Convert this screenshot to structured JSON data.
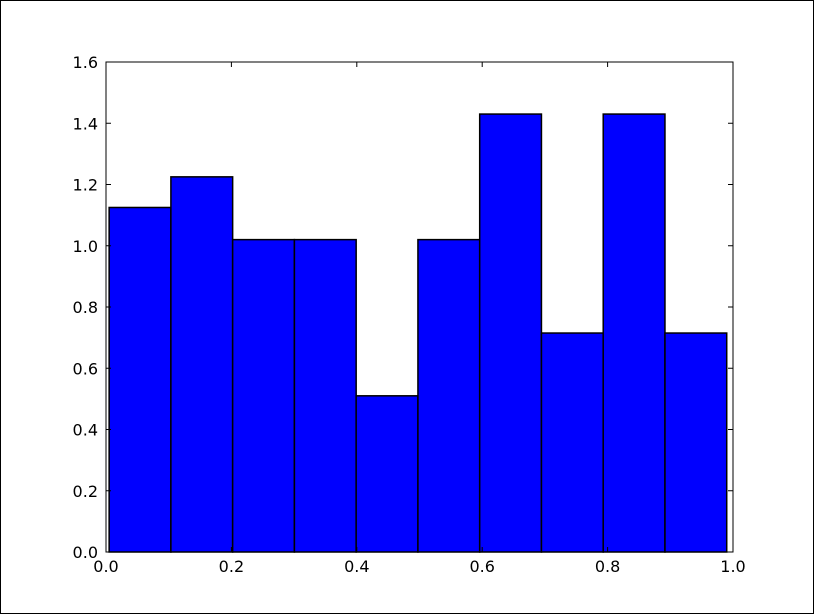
{
  "chart_data": {
    "type": "bar",
    "title": "",
    "xlabel": "",
    "ylabel": "",
    "xlim": [
      0.0,
      1.0
    ],
    "ylim": [
      0.0,
      1.6
    ],
    "bin_edges": [
      0.005,
      0.1035,
      0.202,
      0.3005,
      0.399,
      0.4975,
      0.596,
      0.6945,
      0.793,
      0.8915,
      0.99
    ],
    "values": [
      1.125,
      1.225,
      1.02,
      1.02,
      0.51,
      1.02,
      1.43,
      0.715,
      1.43,
      0.715
    ],
    "xticks": [
      "0.0",
      "0.2",
      "0.4",
      "0.6",
      "0.8",
      "1.0"
    ],
    "yticks": [
      "0.0",
      "0.2",
      "0.4",
      "0.6",
      "0.8",
      "1.0",
      "1.2",
      "1.4",
      "1.6"
    ],
    "grid": false,
    "bar_color": "#0000ff",
    "edge_color": "#000000"
  }
}
